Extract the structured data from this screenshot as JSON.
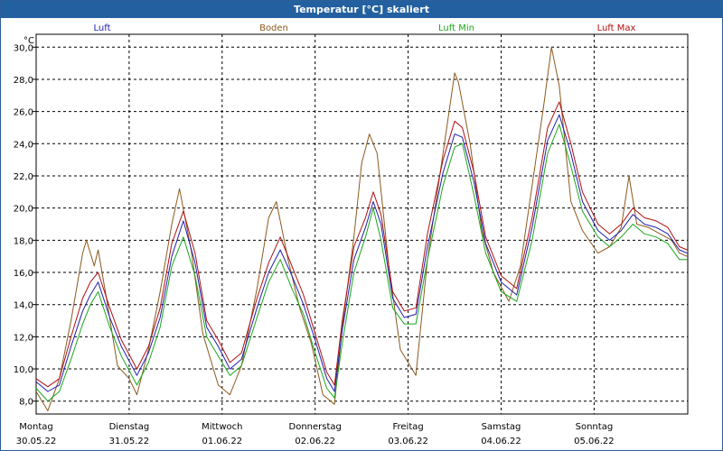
{
  "window": {
    "title": "Temperatur [°C] skaliert"
  },
  "chart_data": {
    "type": "line",
    "ylabel": "°C",
    "ylim": [
      7.2,
      30.8
    ],
    "yticks": [
      8.0,
      10.0,
      12.0,
      14.0,
      16.0,
      18.0,
      20.0,
      22.0,
      24.0,
      26.0,
      28.0,
      30.0
    ],
    "ytick_labels": [
      "8,0",
      "10,0",
      "12,0",
      "14,0",
      "16,0",
      "18,0",
      "20,0",
      "22,0",
      "24,0",
      "26,0",
      "28,0",
      "30,0"
    ],
    "x_start": "30.05.22 00:00",
    "x_end": "06.06.22 00:00",
    "day_labels": [
      {
        "weekday": "Montag",
        "date": "30.05.22"
      },
      {
        "weekday": "Dienstag",
        "date": "31.05.22"
      },
      {
        "weekday": "Mittwoch",
        "date": "01.06.22"
      },
      {
        "weekday": "Donnerstag",
        "date": "02.06.22"
      },
      {
        "weekday": "Freitag",
        "date": "03.06.22"
      },
      {
        "weekday": "Samstag",
        "date": "04.06.22"
      },
      {
        "weekday": "Sonntag",
        "date": "05.06.22"
      }
    ],
    "grid": true,
    "legend_position": "top",
    "series": [
      {
        "name": "Luft",
        "color": "#1f1fb0",
        "points": [
          [
            "30.05.22 00:00",
            9.2
          ],
          [
            "30.05.22 03:00",
            8.6
          ],
          [
            "30.05.22 06:00",
            9.0
          ],
          [
            "30.05.22 09:00",
            11.4
          ],
          [
            "30.05.22 12:00",
            13.6
          ],
          [
            "30.05.22 14:00",
            14.6
          ],
          [
            "30.05.22 16:00",
            15.4
          ],
          [
            "30.05.22 19:00",
            13.2
          ],
          [
            "30.05.22 22:00",
            11.4
          ],
          [
            "31.05.22 02:00",
            9.6
          ],
          [
            "31.05.22 05:00",
            11.0
          ],
          [
            "31.05.22 08:00",
            13.2
          ],
          [
            "31.05.22 11:00",
            17.0
          ],
          [
            "31.05.22 14:00",
            19.2
          ],
          [
            "31.05.22 17:00",
            16.6
          ],
          [
            "31.05.22 20:00",
            12.6
          ],
          [
            "31.05.22 23:00",
            11.4
          ],
          [
            "01.06.22 02:00",
            10.0
          ],
          [
            "01.06.22 05:00",
            10.6
          ],
          [
            "01.06.22 09:00",
            13.8
          ],
          [
            "01.06.22 12:00",
            16.0
          ],
          [
            "01.06.22 15:00",
            17.4
          ],
          [
            "01.06.22 18:00",
            15.8
          ],
          [
            "01.06.22 21:00",
            14.0
          ],
          [
            "02.06.22 00:00",
            11.8
          ],
          [
            "02.06.22 03:00",
            9.4
          ],
          [
            "02.06.22 05:00",
            8.6
          ],
          [
            "02.06.22 07:00",
            12.4
          ],
          [
            "02.06.22 10:00",
            16.8
          ],
          [
            "02.06.22 13:00",
            18.8
          ],
          [
            "02.06.22 15:00",
            20.4
          ],
          [
            "02.06.22 17:00",
            19.0
          ],
          [
            "02.06.22 20:00",
            14.4
          ],
          [
            "02.06.22 23:00",
            13.2
          ],
          [
            "03.06.22 02:00",
            13.4
          ],
          [
            "03.06.22 05:00",
            17.6
          ],
          [
            "03.06.22 09:00",
            22.2
          ],
          [
            "03.06.22 12:00",
            24.6
          ],
          [
            "03.06.22 14:00",
            24.4
          ],
          [
            "03.06.22 17:00",
            21.6
          ],
          [
            "03.06.22 20:00",
            17.8
          ],
          [
            "04.06.22 00:00",
            15.4
          ],
          [
            "04.06.22 04:00",
            14.6
          ],
          [
            "04.06.22 08:00",
            18.8
          ],
          [
            "04.06.22 12:00",
            24.2
          ],
          [
            "04.06.22 15:00",
            25.8
          ],
          [
            "04.06.22 18:00",
            23.4
          ],
          [
            "04.06.22 21:00",
            20.4
          ],
          [
            "05.06.22 01:00",
            18.6
          ],
          [
            "05.06.22 04:00",
            18.0
          ],
          [
            "05.06.22 07:00",
            18.6
          ],
          [
            "05.06.22 10:00",
            19.6
          ],
          [
            "05.06.22 13:00",
            19.0
          ],
          [
            "05.06.22 16:00",
            18.8
          ],
          [
            "05.06.22 19:00",
            18.4
          ],
          [
            "05.06.22 22:00",
            17.4
          ],
          [
            "06.06.22 00:00",
            17.2
          ]
        ]
      },
      {
        "name": "Boden",
        "color": "#8b5a1e",
        "points": [
          [
            "30.05.22 00:00",
            8.6
          ],
          [
            "30.05.22 03:00",
            7.4
          ],
          [
            "30.05.22 06:00",
            9.4
          ],
          [
            "30.05.22 09:00",
            13.0
          ],
          [
            "30.05.22 12:00",
            17.2
          ],
          [
            "30.05.22 13:00",
            18.0
          ],
          [
            "30.05.22 15:00",
            16.4
          ],
          [
            "30.05.22 16:00",
            17.4
          ],
          [
            "30.05.22 18:00",
            14.6
          ],
          [
            "30.05.22 21:00",
            10.2
          ],
          [
            "31.05.22 00:00",
            9.4
          ],
          [
            "31.05.22 02:00",
            8.4
          ],
          [
            "31.05.22 05:00",
            11.2
          ],
          [
            "31.05.22 08:00",
            14.8
          ],
          [
            "31.05.22 11:00",
            19.0
          ],
          [
            "31.05.22 13:00",
            21.2
          ],
          [
            "31.05.22 16:00",
            17.4
          ],
          [
            "31.05.22 19:00",
            12.2
          ],
          [
            "31.05.22 23:00",
            9.0
          ],
          [
            "01.06.22 02:00",
            8.4
          ],
          [
            "01.06.22 05:00",
            10.2
          ],
          [
            "01.06.22 09:00",
            15.0
          ],
          [
            "01.06.22 12:00",
            19.4
          ],
          [
            "01.06.22 14:00",
            20.4
          ],
          [
            "01.06.22 17:00",
            16.8
          ],
          [
            "01.06.22 20:00",
            13.8
          ],
          [
            "01.06.22 23:00",
            11.6
          ],
          [
            "02.06.22 02:00",
            8.4
          ],
          [
            "02.06.22 05:00",
            7.8
          ],
          [
            "02.06.22 07:00",
            12.6
          ],
          [
            "02.06.22 10:00",
            18.2
          ],
          [
            "02.06.22 12:00",
            22.8
          ],
          [
            "02.06.22 14:00",
            24.6
          ],
          [
            "02.06.22 16:00",
            23.4
          ],
          [
            "02.06.22 19:00",
            16.4
          ],
          [
            "02.06.22 22:00",
            11.2
          ],
          [
            "03.06.22 02:00",
            9.6
          ],
          [
            "03.06.22 05:00",
            16.8
          ],
          [
            "03.06.22 09:00",
            23.4
          ],
          [
            "03.06.22 12:00",
            28.4
          ],
          [
            "03.06.22 13:00",
            27.8
          ],
          [
            "03.06.22 16:00",
            24.0
          ],
          [
            "03.06.22 19:00",
            18.6
          ],
          [
            "03.06.22 22:00",
            16.0
          ],
          [
            "04.06.22 02:00",
            14.2
          ],
          [
            "04.06.22 05:00",
            16.4
          ],
          [
            "04.06.22 08:00",
            21.4
          ],
          [
            "04.06.22 11:00",
            26.4
          ],
          [
            "04.06.22 13:00",
            30.0
          ],
          [
            "04.06.22 15:00",
            27.6
          ],
          [
            "04.06.22 18:00",
            20.4
          ],
          [
            "04.06.22 21:00",
            18.6
          ],
          [
            "05.06.22 01:00",
            17.2
          ],
          [
            "05.06.22 04:00",
            17.6
          ],
          [
            "05.06.22 07:00",
            18.8
          ],
          [
            "05.06.22 09:00",
            22.0
          ],
          [
            "05.06.22 11:00",
            19.0
          ],
          [
            "05.06.22 14:00",
            18.8
          ],
          [
            "05.06.22 17:00",
            18.4
          ],
          [
            "05.06.22 20:00",
            18.0
          ],
          [
            "05.06.22 22:00",
            17.2
          ],
          [
            "06.06.22 00:00",
            17.0
          ]
        ]
      },
      {
        "name": "Luft Min",
        "color": "#1aa81a",
        "points": [
          [
            "30.05.22 00:00",
            8.8
          ],
          [
            "30.05.22 03:00",
            8.0
          ],
          [
            "30.05.22 06:00",
            8.6
          ],
          [
            "30.05.22 09:00",
            10.6
          ],
          [
            "30.05.22 12:00",
            12.8
          ],
          [
            "30.05.22 14:00",
            14.0
          ],
          [
            "30.05.22 16:00",
            14.8
          ],
          [
            "30.05.22 19:00",
            12.6
          ],
          [
            "30.05.22 22:00",
            10.8
          ],
          [
            "31.05.22 02:00",
            9.0
          ],
          [
            "31.05.22 05:00",
            10.4
          ],
          [
            "31.05.22 08:00",
            12.6
          ],
          [
            "31.05.22 11:00",
            16.4
          ],
          [
            "31.05.22 14:00",
            18.2
          ],
          [
            "31.05.22 17:00",
            15.8
          ],
          [
            "31.05.22 20:00",
            12.0
          ],
          [
            "31.05.22 23:00",
            10.8
          ],
          [
            "01.06.22 02:00",
            9.6
          ],
          [
            "01.06.22 05:00",
            10.2
          ],
          [
            "01.06.22 09:00",
            13.2
          ],
          [
            "01.06.22 12:00",
            15.4
          ],
          [
            "01.06.22 15:00",
            16.8
          ],
          [
            "01.06.22 18:00",
            15.0
          ],
          [
            "01.06.22 21:00",
            13.4
          ],
          [
            "02.06.22 00:00",
            11.0
          ],
          [
            "02.06.22 03:00",
            8.8
          ],
          [
            "02.06.22 05:00",
            8.2
          ],
          [
            "02.06.22 07:00",
            11.6
          ],
          [
            "02.06.22 10:00",
            16.0
          ],
          [
            "02.06.22 13:00",
            18.2
          ],
          [
            "02.06.22 15:00",
            20.0
          ],
          [
            "02.06.22 17:00",
            18.0
          ],
          [
            "02.06.22 20:00",
            13.8
          ],
          [
            "02.06.22 23:00",
            12.8
          ],
          [
            "03.06.22 02:00",
            12.8
          ],
          [
            "03.06.22 05:00",
            16.8
          ],
          [
            "03.06.22 09:00",
            21.4
          ],
          [
            "03.06.22 12:00",
            23.8
          ],
          [
            "03.06.22 14:00",
            24.0
          ],
          [
            "03.06.22 17:00",
            20.8
          ],
          [
            "03.06.22 20:00",
            17.2
          ],
          [
            "04.06.22 00:00",
            14.8
          ],
          [
            "04.06.22 04:00",
            14.2
          ],
          [
            "04.06.22 08:00",
            18.0
          ],
          [
            "04.06.22 12:00",
            23.4
          ],
          [
            "04.06.22 15:00",
            25.2
          ],
          [
            "04.06.22 18:00",
            22.6
          ],
          [
            "04.06.22 21:00",
            19.8
          ],
          [
            "05.06.22 01:00",
            18.2
          ],
          [
            "05.06.22 04:00",
            17.6
          ],
          [
            "05.06.22 07:00",
            18.2
          ],
          [
            "05.06.22 10:00",
            19.0
          ],
          [
            "05.06.22 13:00",
            18.4
          ],
          [
            "05.06.22 16:00",
            18.2
          ],
          [
            "05.06.22 19:00",
            17.8
          ],
          [
            "05.06.22 22:00",
            16.8
          ],
          [
            "06.06.22 00:00",
            16.8
          ]
        ]
      },
      {
        "name": "Luft Max",
        "color": "#b01010",
        "points": [
          [
            "30.05.22 00:00",
            9.4
          ],
          [
            "30.05.22 03:00",
            8.9
          ],
          [
            "30.05.22 06:00",
            9.4
          ],
          [
            "30.05.22 09:00",
            12.0
          ],
          [
            "30.05.22 12:00",
            14.4
          ],
          [
            "30.05.22 14:00",
            15.4
          ],
          [
            "30.05.22 16:00",
            16.0
          ],
          [
            "30.05.22 19:00",
            13.8
          ],
          [
            "30.05.22 22:00",
            11.8
          ],
          [
            "31.05.22 02:00",
            10.0
          ],
          [
            "31.05.22 05:00",
            11.4
          ],
          [
            "31.05.22 08:00",
            13.8
          ],
          [
            "31.05.22 11:00",
            17.8
          ],
          [
            "31.05.22 14:00",
            19.8
          ],
          [
            "31.05.22 17:00",
            17.2
          ],
          [
            "31.05.22 20:00",
            13.0
          ],
          [
            "31.05.22 23:00",
            11.8
          ],
          [
            "01.06.22 02:00",
            10.4
          ],
          [
            "01.06.22 05:00",
            11.0
          ],
          [
            "01.06.22 09:00",
            14.4
          ],
          [
            "01.06.22 12:00",
            16.6
          ],
          [
            "01.06.22 15:00",
            18.2
          ],
          [
            "01.06.22 18:00",
            16.4
          ],
          [
            "01.06.22 21:00",
            14.6
          ],
          [
            "02.06.22 00:00",
            12.2
          ],
          [
            "02.06.22 03:00",
            9.8
          ],
          [
            "02.06.22 05:00",
            9.0
          ],
          [
            "02.06.22 07:00",
            13.0
          ],
          [
            "02.06.22 10:00",
            17.6
          ],
          [
            "02.06.22 13:00",
            19.4
          ],
          [
            "02.06.22 15:00",
            21.0
          ],
          [
            "02.06.22 17:00",
            19.6
          ],
          [
            "02.06.22 20:00",
            14.8
          ],
          [
            "02.06.22 23:00",
            13.6
          ],
          [
            "03.06.22 02:00",
            13.8
          ],
          [
            "03.06.22 05:00",
            18.4
          ],
          [
            "03.06.22 09:00",
            23.0
          ],
          [
            "03.06.22 12:00",
            25.4
          ],
          [
            "03.06.22 14:00",
            25.0
          ],
          [
            "03.06.22 17:00",
            22.2
          ],
          [
            "03.06.22 20:00",
            18.2
          ],
          [
            "04.06.22 00:00",
            15.8
          ],
          [
            "04.06.22 04:00",
            15.0
          ],
          [
            "04.06.22 08:00",
            19.4
          ],
          [
            "04.06.22 12:00",
            25.0
          ],
          [
            "04.06.22 15:00",
            26.6
          ],
          [
            "04.06.22 18:00",
            24.0
          ],
          [
            "04.06.22 21:00",
            21.0
          ],
          [
            "05.06.22 01:00",
            19.0
          ],
          [
            "05.06.22 04:00",
            18.4
          ],
          [
            "05.06.22 07:00",
            19.0
          ],
          [
            "05.06.22 10:00",
            20.0
          ],
          [
            "05.06.22 13:00",
            19.4
          ],
          [
            "05.06.22 16:00",
            19.2
          ],
          [
            "05.06.22 19:00",
            18.8
          ],
          [
            "05.06.22 22:00",
            17.6
          ],
          [
            "06.06.22 00:00",
            17.4
          ]
        ]
      }
    ]
  }
}
